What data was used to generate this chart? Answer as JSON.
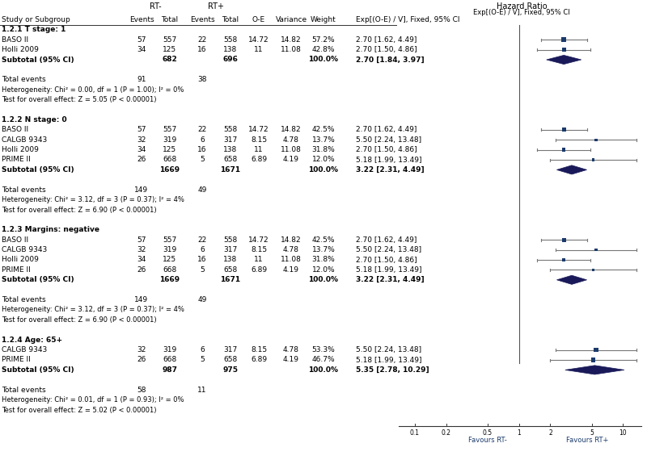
{
  "sections": [
    {
      "title": "1.2.1 T stage: 1",
      "rows": [
        {
          "study": "BASO II",
          "rt_events": 57,
          "rt_total": 557,
          "rtp_events": 22,
          "rtp_total": 558,
          "oe": "14.72",
          "variance": "14.82",
          "weight": "57.2%",
          "hr": 2.7,
          "ci_low": 1.62,
          "ci_high": 4.49,
          "ci_str": "2.70 [1.62, 4.49]",
          "bold": false,
          "is_subtotal": false
        },
        {
          "study": "Holli 2009",
          "rt_events": 34,
          "rt_total": 125,
          "rtp_events": 16,
          "rtp_total": 138,
          "oe": "11",
          "variance": "11.08",
          "weight": "42.8%",
          "hr": 2.7,
          "ci_low": 1.5,
          "ci_high": 4.86,
          "ci_str": "2.70 [1.50, 4.86]",
          "bold": false,
          "is_subtotal": false
        },
        {
          "study": "Subtotal (95% CI)",
          "rt_events": null,
          "rt_total": "682",
          "rtp_events": null,
          "rtp_total": "696",
          "oe": null,
          "variance": null,
          "weight": "100.0%",
          "hr": 2.7,
          "ci_low": 1.84,
          "ci_high": 3.97,
          "ci_str": "2.70 [1.84, 3.97]",
          "bold": true,
          "is_subtotal": true
        }
      ],
      "total_events_rt": 91,
      "total_events_rtp": 38,
      "heterogeneity": "Heterogeneity: Chi² = 0.00, df = 1 (P = 1.00); I² = 0%",
      "test_overall": "Test for overall effect: Z = 5.05 (P < 0.00001)"
    },
    {
      "title": "1.2.2 N stage: 0",
      "rows": [
        {
          "study": "BASO II",
          "rt_events": 57,
          "rt_total": 557,
          "rtp_events": 22,
          "rtp_total": 558,
          "oe": "14.72",
          "variance": "14.82",
          "weight": "42.5%",
          "hr": 2.7,
          "ci_low": 1.62,
          "ci_high": 4.49,
          "ci_str": "2.70 [1.62, 4.49]",
          "bold": false,
          "is_subtotal": false
        },
        {
          "study": "CALGB 9343",
          "rt_events": 32,
          "rt_total": 319,
          "rtp_events": 6,
          "rtp_total": 317,
          "oe": "8.15",
          "variance": "4.78",
          "weight": "13.7%",
          "hr": 5.5,
          "ci_low": 2.24,
          "ci_high": 13.48,
          "ci_str": "5.50 [2.24, 13.48]",
          "bold": false,
          "is_subtotal": false
        },
        {
          "study": "Holli 2009",
          "rt_events": 34,
          "rt_total": 125,
          "rtp_events": 16,
          "rtp_total": 138,
          "oe": "11",
          "variance": "11.08",
          "weight": "31.8%",
          "hr": 2.7,
          "ci_low": 1.5,
          "ci_high": 4.86,
          "ci_str": "2.70 [1.50, 4.86]",
          "bold": false,
          "is_subtotal": false
        },
        {
          "study": "PRIME II",
          "rt_events": 26,
          "rt_total": 668,
          "rtp_events": 5,
          "rtp_total": 658,
          "oe": "6.89",
          "variance": "4.19",
          "weight": "12.0%",
          "hr": 5.18,
          "ci_low": 1.99,
          "ci_high": 13.49,
          "ci_str": "5.18 [1.99, 13.49]",
          "bold": false,
          "is_subtotal": false
        },
        {
          "study": "Subtotal (95% CI)",
          "rt_events": null,
          "rt_total": "1669",
          "rtp_events": null,
          "rtp_total": "1671",
          "oe": null,
          "variance": null,
          "weight": "100.0%",
          "hr": 3.22,
          "ci_low": 2.31,
          "ci_high": 4.49,
          "ci_str": "3.22 [2.31, 4.49]",
          "bold": true,
          "is_subtotal": true
        }
      ],
      "total_events_rt": 149,
      "total_events_rtp": 49,
      "heterogeneity": "Heterogeneity: Chi² = 3.12, df = 3 (P = 0.37); I² = 4%",
      "test_overall": "Test for overall effect: Z = 6.90 (P < 0.00001)"
    },
    {
      "title": "1.2.3 Margins: negative",
      "rows": [
        {
          "study": "BASO II",
          "rt_events": 57,
          "rt_total": 557,
          "rtp_events": 22,
          "rtp_total": 558,
          "oe": "14.72",
          "variance": "14.82",
          "weight": "42.5%",
          "hr": 2.7,
          "ci_low": 1.62,
          "ci_high": 4.49,
          "ci_str": "2.70 [1.62, 4.49]",
          "bold": false,
          "is_subtotal": false
        },
        {
          "study": "CALGB 9343",
          "rt_events": 32,
          "rt_total": 319,
          "rtp_events": 6,
          "rtp_total": 317,
          "oe": "8.15",
          "variance": "4.78",
          "weight": "13.7%",
          "hr": 5.5,
          "ci_low": 2.24,
          "ci_high": 13.48,
          "ci_str": "5.50 [2.24, 13.48]",
          "bold": false,
          "is_subtotal": false
        },
        {
          "study": "Holli 2009",
          "rt_events": 34,
          "rt_total": 125,
          "rtp_events": 16,
          "rtp_total": 138,
          "oe": "11",
          "variance": "11.08",
          "weight": "31.8%",
          "hr": 2.7,
          "ci_low": 1.5,
          "ci_high": 4.86,
          "ci_str": "2.70 [1.50, 4.86]",
          "bold": false,
          "is_subtotal": false
        },
        {
          "study": "PRIME II",
          "rt_events": 26,
          "rt_total": 668,
          "rtp_events": 5,
          "rtp_total": 658,
          "oe": "6.89",
          "variance": "4.19",
          "weight": "12.0%",
          "hr": 5.18,
          "ci_low": 1.99,
          "ci_high": 13.49,
          "ci_str": "5.18 [1.99, 13.49]",
          "bold": false,
          "is_subtotal": false
        },
        {
          "study": "Subtotal (95% CI)",
          "rt_events": null,
          "rt_total": "1669",
          "rtp_events": null,
          "rtp_total": "1671",
          "oe": null,
          "variance": null,
          "weight": "100.0%",
          "hr": 3.22,
          "ci_low": 2.31,
          "ci_high": 4.49,
          "ci_str": "3.22 [2.31, 4.49]",
          "bold": true,
          "is_subtotal": true
        }
      ],
      "total_events_rt": 149,
      "total_events_rtp": 49,
      "heterogeneity": "Heterogeneity: Chi² = 3.12, df = 3 (P = 0.37); I² = 4%",
      "test_overall": "Test for overall effect: Z = 6.90 (P < 0.00001)"
    },
    {
      "title": "1.2.4 Age: 65+",
      "rows": [
        {
          "study": "CALGB 9343",
          "rt_events": 32,
          "rt_total": 319,
          "rtp_events": 6,
          "rtp_total": 317,
          "oe": "8.15",
          "variance": "4.78",
          "weight": "53.3%",
          "hr": 5.5,
          "ci_low": 2.24,
          "ci_high": 13.48,
          "ci_str": "5.50 [2.24, 13.48]",
          "bold": false,
          "is_subtotal": false
        },
        {
          "study": "PRIME II",
          "rt_events": 26,
          "rt_total": 668,
          "rtp_events": 5,
          "rtp_total": 658,
          "oe": "6.89",
          "variance": "4.19",
          "weight": "46.7%",
          "hr": 5.18,
          "ci_low": 1.99,
          "ci_high": 13.49,
          "ci_str": "5.18 [1.99, 13.49]",
          "bold": false,
          "is_subtotal": false
        },
        {
          "study": "Subtotal (95% CI)",
          "rt_events": null,
          "rt_total": "987",
          "rtp_events": null,
          "rtp_total": "975",
          "oe": null,
          "variance": null,
          "weight": "100.0%",
          "hr": 5.35,
          "ci_low": 2.78,
          "ci_high": 10.29,
          "ci_str": "5.35 [2.78, 10.29]",
          "bold": true,
          "is_subtotal": true
        }
      ],
      "total_events_rt": 58,
      "total_events_rtp": 11,
      "heterogeneity": "Heterogeneity: Chi² = 0.01, df = 1 (P = 0.93); I² = 0%",
      "test_overall": "Test for overall effect: Z = 5.02 (P < 0.00001)"
    }
  ],
  "axis_ticks": [
    0.1,
    0.2,
    0.5,
    1,
    2,
    5,
    10
  ],
  "axis_labels": [
    "0.1",
    "0.2",
    "0.5",
    "1",
    "2",
    "5",
    "10"
  ],
  "favour_left": "Favours RT-",
  "favour_right": "Favours RT+",
  "study_color": "#1a3a6b",
  "diamond_color": "#1a1a5a",
  "text_color": "#000000",
  "bg_color": "#ffffff",
  "fs": 6.5,
  "fs_small": 6.0,
  "fs_header": 7.0
}
